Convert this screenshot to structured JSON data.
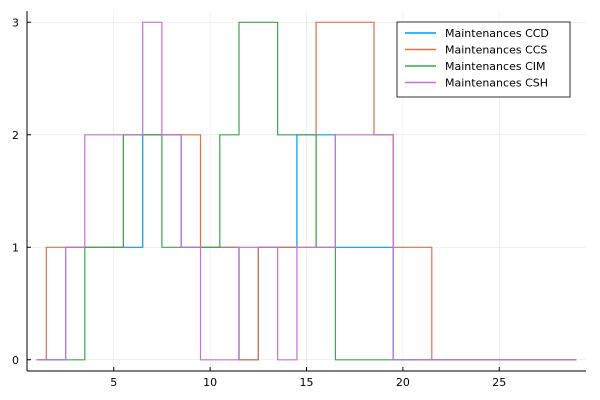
{
  "chart_data": {
    "type": "line",
    "step": true,
    "grid": true,
    "legend_position": "top-right",
    "xlim": [
      0.5,
      29.5
    ],
    "ylim": [
      -0.1,
      3.1
    ],
    "x_ticks": [
      5,
      10,
      15,
      20,
      25
    ],
    "x_tick_labels": [
      "5",
      "10",
      "15",
      "20",
      "25"
    ],
    "y_ticks": [
      0,
      1,
      2,
      3
    ],
    "y_tick_labels": [
      "0",
      "1",
      "2",
      "3"
    ],
    "series": [
      {
        "name": "Maintenances CCD",
        "color": "#009AFA",
        "x": [
          1,
          2,
          3,
          4,
          5,
          6,
          7,
          8,
          9,
          10,
          11,
          12,
          13,
          14,
          15,
          16,
          17,
          18,
          19,
          20,
          21,
          22,
          23,
          24,
          25,
          26,
          27,
          28,
          29
        ],
        "values": [
          0,
          0,
          1,
          1,
          1,
          1,
          2,
          2,
          1,
          1,
          1,
          0,
          1,
          1,
          2,
          2,
          1,
          1,
          1,
          0,
          0,
          0,
          0,
          0,
          0,
          0,
          0,
          0,
          0
        ]
      },
      {
        "name": "Maintenances CCS",
        "color": "#E36F47",
        "x": [
          1,
          2,
          3,
          4,
          5,
          6,
          7,
          8,
          9,
          10,
          11,
          12,
          13,
          14,
          15,
          16,
          17,
          18,
          19,
          20,
          21,
          22,
          23,
          24,
          25,
          26,
          27,
          28,
          29
        ],
        "values": [
          0,
          1,
          1,
          1,
          1,
          2,
          2,
          2,
          2,
          1,
          1,
          0,
          1,
          1,
          1,
          3,
          3,
          3,
          2,
          1,
          1,
          0,
          0,
          0,
          0,
          0,
          0,
          0,
          0
        ]
      },
      {
        "name": "Maintenances CIM",
        "color": "#3EA44E",
        "x": [
          1,
          2,
          3,
          4,
          5,
          6,
          7,
          8,
          9,
          10,
          11,
          12,
          13,
          14,
          15,
          16,
          17,
          18,
          19,
          20,
          21,
          22,
          23,
          24,
          25,
          26,
          27,
          28,
          29
        ],
        "values": [
          0,
          0,
          0,
          1,
          1,
          2,
          2,
          1,
          1,
          1,
          2,
          3,
          3,
          2,
          2,
          1,
          0,
          0,
          0,
          0,
          0,
          0,
          0,
          0,
          0,
          0,
          0,
          0,
          0
        ]
      },
      {
        "name": "Maintenances CSH",
        "color": "#C371D2",
        "x": [
          1,
          2,
          3,
          4,
          5,
          6,
          7,
          8,
          9,
          10,
          11,
          12,
          13,
          14,
          15,
          16,
          17,
          18,
          19,
          20,
          21,
          22,
          23,
          24,
          25,
          26,
          27,
          28,
          29
        ],
        "values": [
          0,
          0,
          1,
          2,
          2,
          2,
          3,
          2,
          1,
          0,
          0,
          1,
          1,
          0,
          1,
          1,
          2,
          2,
          2,
          0,
          0,
          0,
          0,
          0,
          0,
          0,
          0,
          0,
          0
        ]
      }
    ]
  }
}
